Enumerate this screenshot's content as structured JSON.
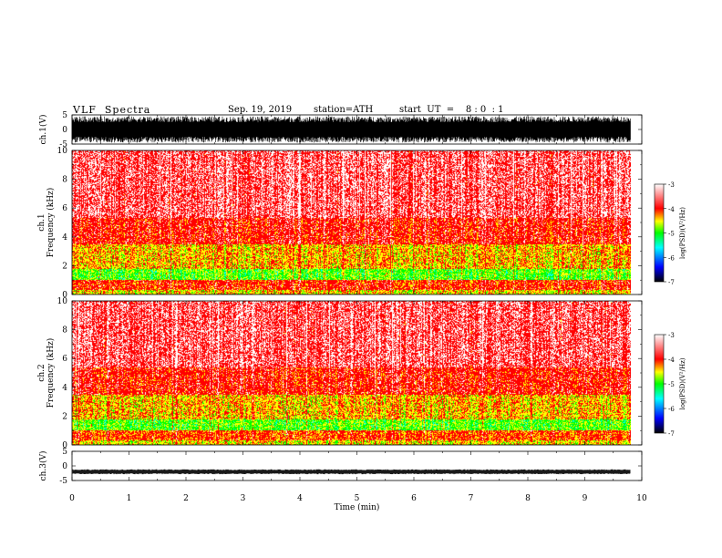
{
  "header": {
    "title": "VLF  Spectra",
    "date": "Sep. 19, 2019",
    "station": "station=ATH",
    "start_ut": "start  UT  =    8 : 0  : 1"
  },
  "colors": {
    "spectrogram_scale": [
      "#000000",
      "#0000ff",
      "#00ffff",
      "#00ff00",
      "#ffff00",
      "#ff0000",
      "#ffffff"
    ]
  },
  "chart_data": [
    {
      "type": "line",
      "name": "ch1-waveform",
      "ylabel": "ch.1(V)",
      "ylim": [
        -5,
        5
      ],
      "yticks": [
        "5",
        "0",
        "-5"
      ],
      "xlim": [
        0,
        10
      ],
      "x_data_end": 9.8,
      "description_values": {
        "amplitude_min": -4.5,
        "amplitude_max": 4.5
      }
    },
    {
      "type": "heatmap",
      "name": "ch1-spectrogram",
      "ylabel": "ch.1\nFrequency (kHz)",
      "ylabel_line1": "ch.1",
      "ylabel_line2": "Frequency  (kHz)",
      "ylim": [
        0,
        10
      ],
      "yticks": [
        "0",
        "2",
        "4",
        "6",
        "8",
        "10"
      ],
      "xlim": [
        0,
        10
      ],
      "x_data_end": 9.8,
      "colorbar": {
        "label": "log(PSD)(V²/Hz)",
        "range": [
          -7,
          -3
        ],
        "ticks": [
          "-3",
          "-4",
          "-5",
          "-6",
          "-7"
        ]
      },
      "bands": [
        {
          "f_low": 0.0,
          "f_high": 0.3,
          "log_psd": -4.5
        },
        {
          "f_low": 0.3,
          "f_high": 1.0,
          "log_psd": -4.0
        },
        {
          "f_low": 1.0,
          "f_high": 1.8,
          "log_psd": -4.9
        },
        {
          "f_low": 1.8,
          "f_high": 3.5,
          "log_psd": -4.4
        },
        {
          "f_low": 3.5,
          "f_high": 5.3,
          "log_psd": -3.9
        },
        {
          "f_low": 5.3,
          "f_high": 10.0,
          "log_psd": -3.6
        }
      ]
    },
    {
      "type": "heatmap",
      "name": "ch2-spectrogram",
      "ylabel_line1": "ch.2",
      "ylabel_line2": "Frequency  (kHz)",
      "ylim": [
        0,
        10
      ],
      "yticks": [
        "0",
        "2",
        "4",
        "6",
        "8",
        "10"
      ],
      "xlim": [
        0,
        10
      ],
      "x_data_end": 9.8,
      "colorbar": {
        "label": "log(PSD)(V²/Hz)",
        "range": [
          -7,
          -3
        ],
        "ticks": [
          "-3",
          "-4",
          "-5",
          "-6",
          "-7"
        ]
      },
      "bands": [
        {
          "f_low": 0.0,
          "f_high": 0.3,
          "log_psd": -4.5
        },
        {
          "f_low": 0.3,
          "f_high": 1.0,
          "log_psd": -4.1
        },
        {
          "f_low": 1.0,
          "f_high": 1.8,
          "log_psd": -4.9
        },
        {
          "f_low": 1.8,
          "f_high": 3.5,
          "log_psd": -4.4
        },
        {
          "f_low": 3.5,
          "f_high": 5.4,
          "log_psd": -3.9
        },
        {
          "f_low": 5.4,
          "f_high": 10.0,
          "log_psd": -3.6
        }
      ]
    },
    {
      "type": "line",
      "name": "ch3-waveform",
      "ylabel": "ch.3(V)",
      "ylim": [
        -5,
        5
      ],
      "yticks": [
        "5",
        "0",
        "-5"
      ],
      "xlim": [
        0,
        10
      ],
      "x_data_end": 9.8,
      "description_values": {
        "level": -2.0
      }
    }
  ],
  "xaxis": {
    "label": "Time  (min)",
    "ticks": [
      "0",
      "1",
      "2",
      "3",
      "4",
      "5",
      "6",
      "7",
      "8",
      "9",
      "10"
    ]
  }
}
